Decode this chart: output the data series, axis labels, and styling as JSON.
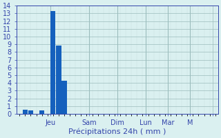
{
  "x_positions": [
    0,
    1,
    2,
    3,
    4,
    5,
    6,
    7,
    8,
    9,
    10,
    11,
    12,
    13,
    14,
    15,
    16,
    17,
    18,
    19,
    20,
    21,
    22,
    23,
    24,
    25,
    26,
    27,
    28,
    29,
    30,
    31,
    32,
    33,
    34,
    35
  ],
  "values": [
    0,
    0.5,
    0.4,
    0,
    0.4,
    0,
    13.3,
    8.8,
    4.3,
    0,
    0,
    0,
    0,
    0,
    0,
    0,
    0,
    0,
    0,
    0,
    0,
    0,
    0,
    0,
    0,
    0,
    0,
    0,
    0,
    0,
    0,
    0,
    0,
    0,
    0,
    0
  ],
  "bar_color": "#1560bd",
  "bg_color": "#daf0f0",
  "grid_color_minor": "#c8dede",
  "grid_color_major": "#9bbcbc",
  "axis_label_color": "#3344aa",
  "tick_color": "#3344aa",
  "xlabel": "Précipitations 24h ( mm )",
  "ylim": [
    0,
    14
  ],
  "yticks": [
    0,
    1,
    2,
    3,
    4,
    5,
    6,
    7,
    8,
    9,
    10,
    11,
    12,
    13,
    14
  ],
  "day_tick_positions": [
    5.5,
    12.5,
    17.5,
    22.5,
    26.5,
    30.5,
    34.5
  ],
  "day_tick_labels": [
    "Jeu",
    "Sam",
    "Dim",
    "Lun",
    "Mar",
    "M",
    ""
  ],
  "vline_positions": [
    5.5,
    12.5,
    17.5,
    22.5,
    26.5,
    30.5
  ],
  "xlabel_fontsize": 8,
  "ytick_fontsize": 7,
  "xtick_fontsize": 7,
  "bar_width": 0.9
}
